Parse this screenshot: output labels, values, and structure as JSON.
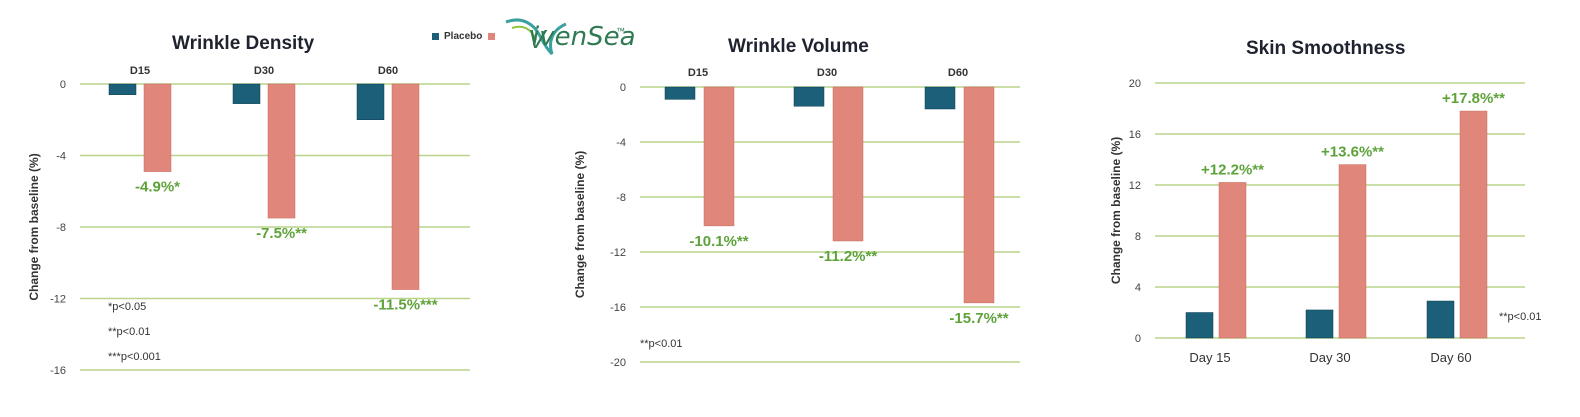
{
  "legend": {
    "placebo_label": "Placebo",
    "placebo_color": "#1c5f78",
    "active_color": "#e0867a",
    "logo_text": "ivenSea",
    "logo_mark": "V",
    "logo_tm": "™"
  },
  "colors": {
    "label_green": "#5ea33a",
    "grid": "#b9d38a",
    "axis_text": "#444444"
  },
  "chart_data": [
    {
      "type": "bar",
      "title": "Wrinkle Density",
      "ylabel": "Change from  baseline (%)",
      "categories": [
        "D15",
        "D30",
        "D60"
      ],
      "ylim": [
        -16,
        0
      ],
      "yticks": [
        0,
        -4,
        -8,
        -12,
        -16
      ],
      "ytick_labels": [
        "0",
        "-4",
        "-8",
        "-12",
        "-16"
      ],
      "series": [
        {
          "name": "Placebo",
          "values": [
            -0.6,
            -1.1,
            -2.0
          ]
        },
        {
          "values": [
            -4.9,
            -7.5,
            -11.5
          ]
        }
      ],
      "data_labels": [
        "-4.9%*",
        "-7.5%**",
        "-11.5%***"
      ],
      "footnotes": [
        "*p<0.05",
        "**p<0.01",
        "***p<0.001"
      ]
    },
    {
      "type": "bar",
      "title": "Wrinkle Volume",
      "ylabel": "Change from  baseline (%)",
      "categories": [
        "D15",
        "D30",
        "D60"
      ],
      "ylim": [
        -20,
        0
      ],
      "yticks": [
        0,
        -4,
        -8,
        -12,
        -16,
        -20
      ],
      "ytick_labels": [
        "0",
        "-4",
        "-8",
        "-12",
        "-16",
        "-20"
      ],
      "series": [
        {
          "name": "Placebo",
          "values": [
            -0.9,
            -1.4,
            -1.6
          ]
        },
        {
          "values": [
            -10.1,
            -11.2,
            -15.7
          ]
        }
      ],
      "data_labels": [
        "-10.1%**",
        "-11.2%**",
        "-15.7%**"
      ],
      "footnotes": [
        "**p<0.01"
      ]
    },
    {
      "type": "bar",
      "title": "Skin Smoothness",
      "ylabel": "Change from  baseline (%)",
      "categories": [
        "Day 15",
        "Day 30",
        "Day 60"
      ],
      "ylim": [
        0,
        20
      ],
      "yticks": [
        0,
        4,
        8,
        12,
        16,
        20
      ],
      "ytick_labels": [
        "0",
        "4",
        "8",
        "12",
        "16",
        "20"
      ],
      "series": [
        {
          "name": "Placebo",
          "values": [
            2.0,
            2.2,
            2.9
          ]
        },
        {
          "values": [
            12.2,
            13.6,
            17.8
          ]
        }
      ],
      "data_labels": [
        "+12.2%**",
        "+13.6%**",
        "+17.8%**"
      ],
      "footnotes": [
        "**p<0.01"
      ]
    }
  ]
}
